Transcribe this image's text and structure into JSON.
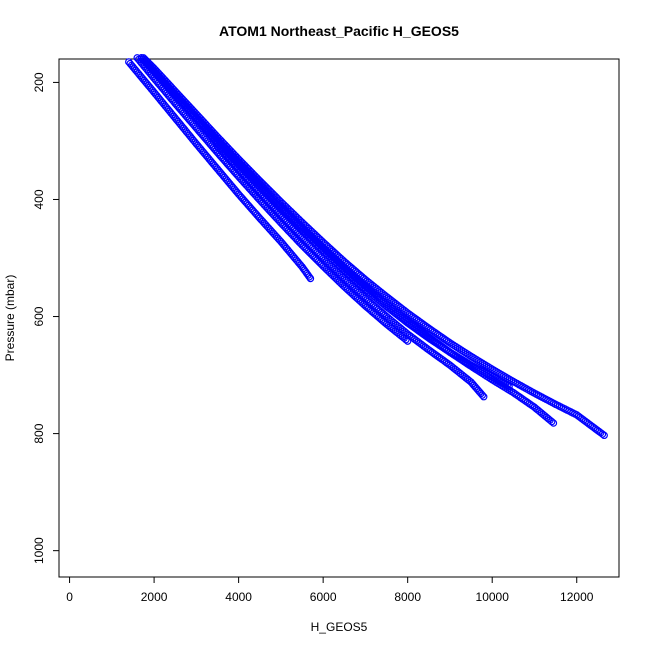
{
  "chart_data": {
    "type": "scatter",
    "title": "ATOM1 Northeast_Pacific H_GEOS5",
    "xlabel": "H_GEOS5",
    "ylabel": "Pressure (mbar)",
    "xlim": [
      -250,
      13000
    ],
    "ylim": [
      1045,
      160
    ],
    "y_reversed": true,
    "x_ticks": [
      0,
      2000,
      4000,
      6000,
      8000,
      10000,
      12000
    ],
    "y_ticks": [
      200,
      400,
      600,
      800,
      1000
    ],
    "grid": false,
    "legend": "none",
    "marker": "open-circle",
    "color": "#0000ff",
    "series": [
      {
        "x": [
          1400,
          2000,
          2500,
          3000,
          3500,
          4000,
          4500,
          5000,
          5500,
          5700
        ],
        "y": [
          165,
          217,
          261,
          305,
          348,
          391,
          432,
          472,
          515,
          535
        ]
      },
      {
        "x": [
          1600,
          2000,
          2500,
          3000,
          3500,
          4000,
          4500,
          5000,
          5500,
          6000,
          6500,
          7000,
          7500,
          8000
        ],
        "y": [
          158,
          193,
          236,
          278,
          320,
          361,
          401,
          440,
          478,
          514,
          549,
          582,
          613,
          642
        ]
      },
      {
        "x": [
          1700,
          2000,
          2500,
          3000,
          3500,
          4000,
          4500,
          5000,
          5500,
          6000,
          6500,
          7000,
          7500,
          8000,
          8500,
          9000,
          9500,
          10000,
          10400
        ],
        "y": [
          158,
          182,
          222,
          262,
          302,
          341,
          379,
          416,
          452,
          487,
          521,
          553,
          583,
          611,
          637,
          661,
          683,
          703,
          720
        ]
      },
      {
        "x": [
          1750,
          2000,
          2500,
          3000,
          3500,
          4000,
          4500,
          5000,
          5500,
          6000,
          6500,
          7000,
          7500,
          8000,
          8500,
          9000,
          9500,
          10000,
          10500,
          11000,
          11500,
          12000,
          12650
        ],
        "y": [
          158,
          176,
          215,
          254,
          293,
          331,
          368,
          404,
          439,
          473,
          506,
          537,
          566,
          594,
          620,
          645,
          668,
          690,
          711,
          731,
          750,
          768,
          803
        ]
      },
      {
        "x": [
          1700,
          2000,
          2500,
          3000,
          3500,
          4000,
          4500,
          5000,
          5500,
          6000,
          6500,
          7000,
          7500,
          8000,
          8500,
          9000,
          9500,
          10000,
          10500,
          11000,
          11450
        ],
        "y": [
          158,
          180,
          220,
          259,
          298,
          336,
          374,
          411,
          447,
          482,
          516,
          548,
          579,
          608,
          635,
          661,
          685,
          708,
          730,
          755,
          782
        ]
      },
      {
        "x": [
          3500,
          4000,
          4500,
          5000,
          5500,
          6000,
          6500,
          7000,
          7500,
          8000,
          8500,
          9000,
          9500,
          9800
        ],
        "y": [
          310,
          350,
          389,
          428,
          465,
          501,
          536,
          569,
          600,
          630,
          657,
          683,
          712,
          737
        ]
      }
    ]
  }
}
